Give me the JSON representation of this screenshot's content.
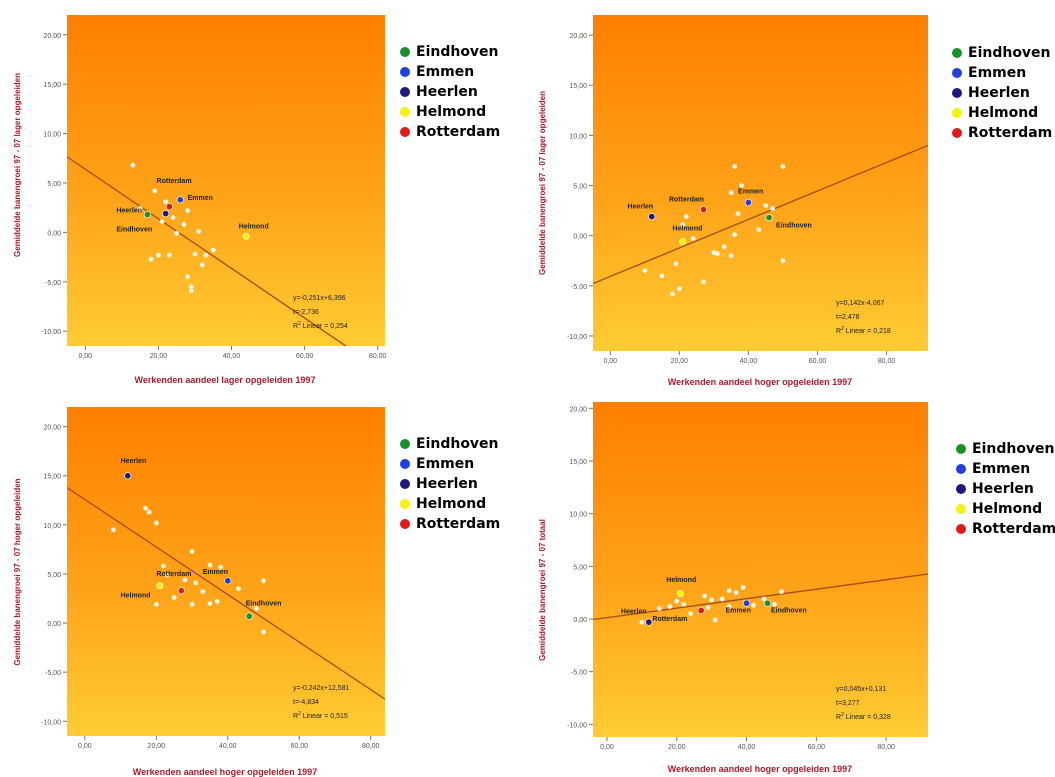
{
  "legend": [
    {
      "name": "Eindhoven",
      "color": "#1a8f2a"
    },
    {
      "name": "Emmen",
      "color": "#1f3fe0"
    },
    {
      "name": "Heerlen",
      "color": "#1a1a80"
    },
    {
      "name": "Helmond",
      "color": "#f2f20a"
    },
    {
      "name": "Rotterdam",
      "color": "#e01a1a"
    }
  ],
  "chart_data": [
    {
      "type": "scatter",
      "xlabel": "Werkenden aandeel lager opgeleiden 1997",
      "ylabel": "Gemiddelde banengroei 97 - 07 lager opgeleiden",
      "xlim": [
        -5,
        82
      ],
      "ylim": [
        -11.5,
        22
      ],
      "xticks": [
        "0,00",
        "20,00",
        "40,00",
        "60,00",
        "80,00"
      ],
      "yticks": [
        "-10,00",
        "-5,00",
        "0,00",
        "5,00",
        "10,00",
        "15,00",
        "20,00"
      ],
      "fit_text": [
        "y=-0,251x+6,396",
        "t=-2,736",
        "R2 Linear = 0,254"
      ],
      "fit": {
        "slope": -0.251,
        "intercept": 6.396
      },
      "highlighted": [
        {
          "name": "Eindhoven",
          "x": 17,
          "y": 1.8
        },
        {
          "name": "Heerlen",
          "x": 22,
          "y": 1.9
        },
        {
          "name": "Rotterdam",
          "x": 23,
          "y": 2.6
        },
        {
          "name": "Emmen",
          "x": 26,
          "y": 3.3
        },
        {
          "name": "Helmond",
          "x": 44,
          "y": -0.4
        }
      ],
      "labels": [
        {
          "text": "Rotterdam",
          "x": 19.5,
          "y": 5.0
        },
        {
          "text": "Emmen",
          "x": 28,
          "y": 3.3
        },
        {
          "text": "Heerlen",
          "x": 8.5,
          "y": 2.0
        },
        {
          "text": "Eindhoven",
          "x": 8.5,
          "y": 0.1
        },
        {
          "text": "Helmond",
          "x": 42,
          "y": 0.4
        }
      ],
      "points": [
        [
          13,
          6.8
        ],
        [
          19,
          4.2
        ],
        [
          22,
          3.1
        ],
        [
          24,
          1.5
        ],
        [
          28,
          2.2
        ],
        [
          31,
          0.1
        ],
        [
          30,
          -2.2
        ],
        [
          33,
          -2.3
        ],
        [
          32,
          -3.3
        ],
        [
          28,
          -4.5
        ],
        [
          29,
          -5.5
        ],
        [
          29,
          -5.9
        ],
        [
          20,
          -2.3
        ],
        [
          23,
          -2.3
        ],
        [
          18,
          -2.7
        ],
        [
          35,
          -1.8
        ],
        [
          25,
          -0.1
        ],
        [
          15,
          2.4
        ],
        [
          21,
          1.1
        ],
        [
          27,
          0.8
        ]
      ]
    },
    {
      "type": "scatter",
      "xlabel": "Werkenden aandeel hoger opgeleiden 1997",
      "ylabel": "Gemiddelde banengroei 97 - 07 lager opgeleiden",
      "xlim": [
        -5,
        92
      ],
      "ylim": [
        -11.5,
        22
      ],
      "xticks": [
        "0,00",
        "20,00",
        "40,00",
        "60,00",
        "80,00"
      ],
      "yticks": [
        "-10,00",
        "-5,00",
        "0,00",
        "5,00",
        "10,00",
        "15,00",
        "20,00"
      ],
      "fit_text": [
        "y=0,142x-4,067",
        "t=2,476",
        "R2 Linear = 0,218"
      ],
      "fit": {
        "slope": 0.142,
        "intercept": -4.067
      },
      "highlighted": [
        {
          "name": "Heerlen",
          "x": 12,
          "y": 1.9
        },
        {
          "name": "Rotterdam",
          "x": 27,
          "y": 2.6
        },
        {
          "name": "Emmen",
          "x": 40,
          "y": 3.3
        },
        {
          "name": "Eindhoven",
          "x": 46,
          "y": 1.8
        },
        {
          "name": "Helmond",
          "x": 21,
          "y": -0.6
        }
      ],
      "labels": [
        {
          "text": "Heerlen",
          "x": 5,
          "y": 2.7
        },
        {
          "text": "Rotterdam",
          "x": 17,
          "y": 3.4
        },
        {
          "text": "Emmen",
          "x": 37,
          "y": 4.2
        },
        {
          "text": "Eindhoven",
          "x": 48,
          "y": 0.8
        },
        {
          "text": "Helmond",
          "x": 18,
          "y": 0.5
        }
      ],
      "points": [
        [
          10,
          -3.5
        ],
        [
          15,
          -4.0
        ],
        [
          18,
          -5.8
        ],
        [
          20,
          -5.3
        ],
        [
          19,
          -2.8
        ],
        [
          21,
          1.1
        ],
        [
          22,
          1.9
        ],
        [
          24,
          -0.3
        ],
        [
          30,
          -1.7
        ],
        [
          31,
          -1.8
        ],
        [
          27,
          -4.6
        ],
        [
          33,
          -1.1
        ],
        [
          35,
          -2.0
        ],
        [
          36,
          0.1
        ],
        [
          37,
          2.2
        ],
        [
          35,
          4.3
        ],
        [
          36,
          6.9
        ],
        [
          38,
          5.0
        ],
        [
          43,
          0.6
        ],
        [
          47,
          2.7
        ],
        [
          50,
          6.9
        ],
        [
          50,
          -2.5
        ],
        [
          45,
          3.0
        ]
      ]
    },
    {
      "type": "scatter",
      "xlabel": "Werkenden aandeel hoger opgeleiden 1997",
      "ylabel": "Gemiddelde banengroei 97 - 07 hoger opgeleiden",
      "xlim": [
        -5,
        84
      ],
      "ylim": [
        -11.5,
        22
      ],
      "xticks": [
        "0,00",
        "20,00",
        "40,00",
        "60,00",
        "80,00"
      ],
      "yticks": [
        "-10,00",
        "-5,00",
        "0,00",
        "5,00",
        "10,00",
        "15,00",
        "20,00"
      ],
      "fit_text": [
        "y=-0,242x+12,581",
        "t=-4,834",
        "R2 Linear = 0,515"
      ],
      "fit": {
        "slope": -0.242,
        "intercept": 12.581
      },
      "highlighted": [
        {
          "name": "Heerlen",
          "x": 12,
          "y": 15.0
        },
        {
          "name": "Rotterdam",
          "x": 27,
          "y": 3.3
        },
        {
          "name": "Emmen",
          "x": 40,
          "y": 4.3
        },
        {
          "name": "Helmond",
          "x": 21,
          "y": 3.8
        },
        {
          "name": "Eindhoven",
          "x": 46,
          "y": 0.7
        }
      ],
      "labels": [
        {
          "text": "Heerlen",
          "x": 10,
          "y": 16.3
        },
        {
          "text": "Rotterdam",
          "x": 20,
          "y": 4.8
        },
        {
          "text": "Emmen",
          "x": 33,
          "y": 5.0
        },
        {
          "text": "Helmond",
          "x": 10,
          "y": 2.6
        },
        {
          "text": "Eindhoven",
          "x": 45,
          "y": 1.8
        }
      ],
      "points": [
        [
          17,
          11.7
        ],
        [
          18,
          11.3
        ],
        [
          20,
          10.2
        ],
        [
          8,
          9.5
        ],
        [
          22,
          5.8
        ],
        [
          23,
          4.9
        ],
        [
          30,
          7.3
        ],
        [
          31,
          4.1
        ],
        [
          35,
          5.9
        ],
        [
          38,
          5.7
        ],
        [
          33,
          3.2
        ],
        [
          35,
          2.0
        ],
        [
          37,
          2.2
        ],
        [
          43,
          3.5
        ],
        [
          50,
          4.3
        ],
        [
          20,
          1.9
        ],
        [
          30,
          1.9
        ],
        [
          48,
          1.5
        ],
        [
          50,
          -0.9
        ],
        [
          25,
          2.6
        ],
        [
          28,
          4.4
        ]
      ]
    },
    {
      "type": "scatter",
      "xlabel": "Werkenden aandeel hoger opgeleiden 1997",
      "ylabel": "Gemiddelde banengroei 97 - 07 totaal",
      "xlim": [
        -4,
        92
      ],
      "ylim": [
        -11.2,
        20.6
      ],
      "xticks": [
        "0,00",
        "20,00",
        "40,00",
        "60,00",
        "80,00"
      ],
      "yticks": [
        "-10,00",
        "-5,00",
        "0,00",
        "5,00",
        "10,00",
        "15,00",
        "20,00"
      ],
      "fit_text": [
        "y=0,045x+0,131",
        "t=3,277",
        "R2 Linear = 0,328"
      ],
      "fit": {
        "slope": 0.045,
        "intercept": 0.131
      },
      "highlighted": [
        {
          "name": "Heerlen",
          "x": 12,
          "y": -0.3
        },
        {
          "name": "Rotterdam",
          "x": 27,
          "y": 0.8
        },
        {
          "name": "Emmen",
          "x": 40,
          "y": 1.5
        },
        {
          "name": "Eindhoven",
          "x": 46,
          "y": 1.5
        },
        {
          "name": "Helmond",
          "x": 21,
          "y": 2.4
        }
      ],
      "labels": [
        {
          "text": "Heerlen",
          "x": 4,
          "y": 0.5
        },
        {
          "text": "Rotterdam",
          "x": 13,
          "y": -0.2
        },
        {
          "text": "Emmen",
          "x": 34,
          "y": 0.6
        },
        {
          "text": "Eindhoven",
          "x": 47,
          "y": 0.6
        },
        {
          "text": "Helmond",
          "x": 17,
          "y": 3.5
        }
      ],
      "points": [
        [
          10,
          -0.3
        ],
        [
          15,
          1.0
        ],
        [
          18,
          1.2
        ],
        [
          20,
          1.7
        ],
        [
          22,
          1.4
        ],
        [
          24,
          0.5
        ],
        [
          29,
          1.1
        ],
        [
          30,
          1.8
        ],
        [
          33,
          1.9
        ],
        [
          35,
          2.7
        ],
        [
          37,
          2.5
        ],
        [
          39,
          3.0
        ],
        [
          42,
          1.3
        ],
        [
          45,
          1.9
        ],
        [
          50,
          2.6
        ],
        [
          48,
          1.4
        ],
        [
          35,
          1.2
        ],
        [
          31,
          -0.1
        ],
        [
          28,
          2.2
        ]
      ]
    }
  ]
}
